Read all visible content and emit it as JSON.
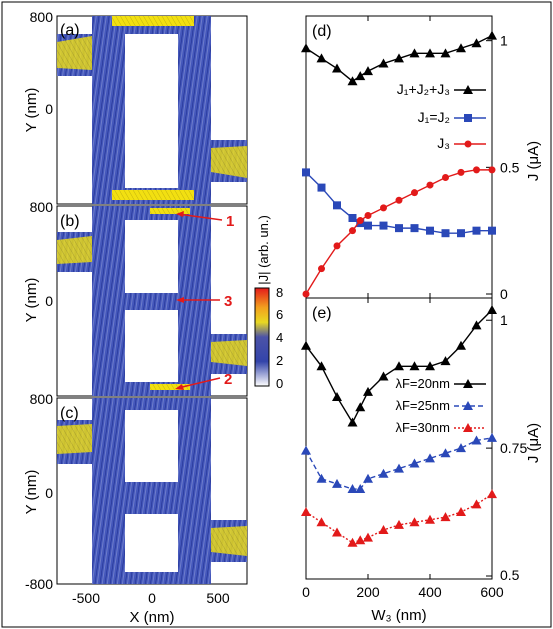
{
  "colors": {
    "current_low": "#ffffff",
    "current_mid": "#3347b0",
    "current_high": "#f2e011",
    "current_max": "#e32222",
    "black": "#000000",
    "blue": "#2a48b8",
    "red": "#e21a1a"
  },
  "panels": {
    "a": {
      "tag": "(a)",
      "ytop": "800",
      "yzero": "0",
      "ylabel": "Y (nm)"
    },
    "b": {
      "tag": "(b)",
      "ytop": "800",
      "yzero": "0",
      "ylabel": "Y (nm)",
      "marks": [
        "1",
        "3",
        "2"
      ]
    },
    "c": {
      "tag": "(c)",
      "ytop": "800",
      "yzero": "0",
      "ybottom": "-800",
      "ylabel": "Y (nm)",
      "xticks": [
        "-500",
        "0",
        "500"
      ],
      "xlabel": "X (nm)"
    },
    "colorbar": {
      "label": "|J| (arb. un.)",
      "ticks": [
        "8",
        "6",
        "4",
        "2",
        "0"
      ],
      "range": [
        0,
        8
      ]
    }
  },
  "chart_data": [
    {
      "panel": "(d)",
      "type": "line",
      "xlabel": "",
      "ylabel": "J (μA)",
      "xlim": [
        0,
        600
      ],
      "ylim": [
        0,
        1.05
      ],
      "yticks": [
        "0",
        "0.5",
        "1"
      ],
      "legend_position": "right",
      "x": [
        0,
        50,
        100,
        150,
        175,
        200,
        250,
        300,
        350,
        400,
        450,
        500,
        550,
        600
      ],
      "series": [
        {
          "name": "J₁+J₂+J₃",
          "color": "#000000",
          "marker": "triangle",
          "values": [
            0.97,
            0.93,
            0.89,
            0.84,
            0.86,
            0.88,
            0.91,
            0.93,
            0.95,
            0.95,
            0.95,
            0.97,
            0.99,
            1.02
          ]
        },
        {
          "name": "J₁=J₂",
          "color": "#2a48b8",
          "marker": "square",
          "values": [
            0.48,
            0.42,
            0.35,
            0.3,
            0.28,
            0.27,
            0.27,
            0.26,
            0.26,
            0.25,
            0.24,
            0.24,
            0.25,
            0.25
          ]
        },
        {
          "name": "J₃",
          "color": "#e21a1a",
          "marker": "circle",
          "values": [
            0.0,
            0.1,
            0.19,
            0.25,
            0.29,
            0.31,
            0.34,
            0.37,
            0.4,
            0.43,
            0.46,
            0.48,
            0.49,
            0.49
          ]
        }
      ]
    },
    {
      "panel": "(e)",
      "type": "line",
      "xlabel": "W₃ (nm)",
      "ylabel": "J (μA)",
      "xlim": [
        0,
        600
      ],
      "ylim": [
        0.5,
        1.02
      ],
      "xticks": [
        "0",
        "200",
        "400",
        "600"
      ],
      "yticks": [
        "0.5",
        "0.75",
        "1"
      ],
      "legend_position": "right",
      "x": [
        0,
        50,
        100,
        150,
        175,
        200,
        250,
        300,
        350,
        400,
        450,
        500,
        550,
        600
      ],
      "series": [
        {
          "name": "λF=20nm",
          "color": "#000000",
          "marker": "triangle",
          "dash": "solid",
          "values": [
            0.95,
            0.91,
            0.85,
            0.8,
            0.83,
            0.86,
            0.89,
            0.91,
            0.91,
            0.91,
            0.92,
            0.95,
            0.99,
            1.02
          ]
        },
        {
          "name": "λF=25nm",
          "color": "#2a48b8",
          "marker": "triangle",
          "dash": "dashed",
          "values": [
            0.745,
            0.69,
            0.68,
            0.67,
            0.67,
            0.69,
            0.7,
            0.71,
            0.72,
            0.73,
            0.74,
            0.75,
            0.765,
            0.77
          ]
        },
        {
          "name": "λF=30nm",
          "color": "#e21a1a",
          "marker": "triangle",
          "dash": "dotted",
          "values": [
            0.625,
            0.605,
            0.585,
            0.565,
            0.57,
            0.575,
            0.59,
            0.6,
            0.605,
            0.61,
            0.615,
            0.625,
            0.64,
            0.66
          ]
        }
      ]
    }
  ]
}
